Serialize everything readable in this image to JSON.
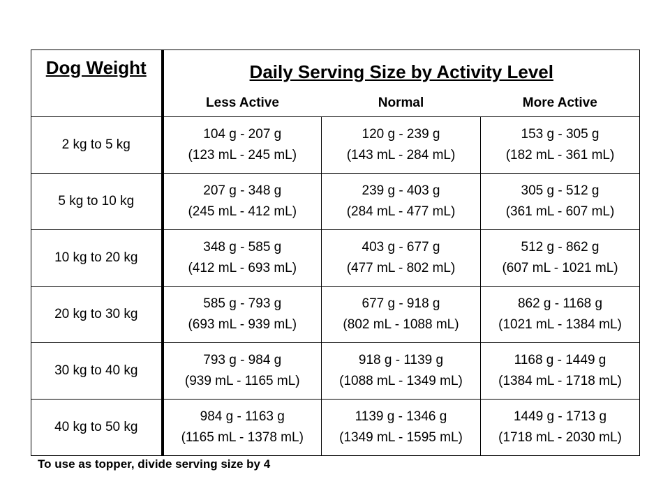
{
  "table": {
    "weight_header": "Dog Weight",
    "main_header": "Daily Serving Size by Activity Level",
    "activity_levels": [
      "Less Active",
      "Normal",
      "More Active"
    ],
    "rows": [
      {
        "weight": "2 kg to 5 kg",
        "cells": [
          {
            "grams": "104 g - 207 g",
            "ml": "(123 mL - 245 mL)"
          },
          {
            "grams": "120 g - 239 g",
            "ml": "(143 mL - 284 mL)"
          },
          {
            "grams": "153 g - 305 g",
            "ml": "(182 mL - 361 mL)"
          }
        ]
      },
      {
        "weight": "5 kg to 10 kg",
        "cells": [
          {
            "grams": "207 g - 348 g",
            "ml": "(245 mL - 412 mL)"
          },
          {
            "grams": "239 g - 403 g",
            "ml": "(284 mL - 477 mL)"
          },
          {
            "grams": "305 g - 512 g",
            "ml": "(361 mL - 607 mL)"
          }
        ]
      },
      {
        "weight": "10 kg to 20 kg",
        "cells": [
          {
            "grams": "348 g - 585 g",
            "ml": "(412 mL - 693 mL)"
          },
          {
            "grams": "403 g - 677 g",
            "ml": "(477 mL - 802 mL)"
          },
          {
            "grams": "512 g - 862 g",
            "ml": "(607 mL - 1021 mL)"
          }
        ]
      },
      {
        "weight": "20 kg to 30 kg",
        "cells": [
          {
            "grams": "585 g - 793 g",
            "ml": "(693 mL - 939 mL)"
          },
          {
            "grams": "677 g - 918 g",
            "ml": "(802 mL - 1088 mL)"
          },
          {
            "grams": "862 g - 1168 g",
            "ml": "(1021 mL - 1384 mL)"
          }
        ]
      },
      {
        "weight": "30 kg to 40 kg",
        "cells": [
          {
            "grams": "793 g - 984 g",
            "ml": "(939 mL - 1165 mL)"
          },
          {
            "grams": "918 g - 1139 g",
            "ml": "(1088 mL - 1349 mL)"
          },
          {
            "grams": "1168 g - 1449 g",
            "ml": "(1384 mL - 1718 mL)"
          }
        ]
      },
      {
        "weight": "40 kg to 50 kg",
        "cells": [
          {
            "grams": "984 g - 1163 g",
            "ml": "(1165 mL - 1378 mL)"
          },
          {
            "grams": "1139 g - 1346 g",
            "ml": "(1349 mL - 1595 mL)"
          },
          {
            "grams": "1449 g - 1713 g",
            "ml": "(1718 mL - 2030 mL)"
          }
        ]
      }
    ]
  },
  "footnote": "To use as topper, divide serving size by 4"
}
